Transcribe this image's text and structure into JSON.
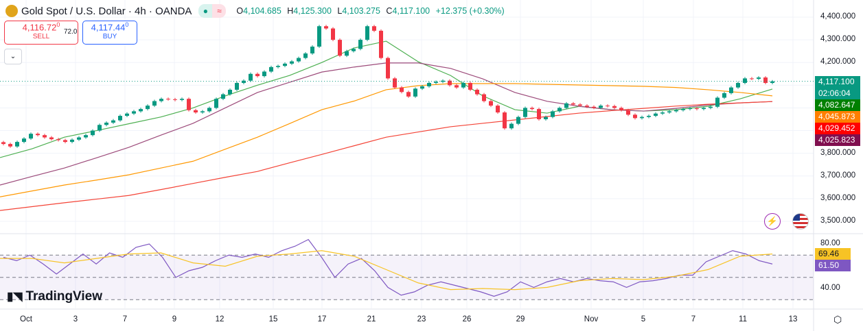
{
  "header": {
    "title": "Gold Spot / U.S. Dollar · 4h · OANDA",
    "open_label": "O",
    "open": "4,104.685",
    "high_label": "H",
    "high": "4,125.300",
    "low_label": "L",
    "low": "4,103.275",
    "close_label": "C",
    "close": "4,117.100",
    "change": "+12.375 (+0.30%)"
  },
  "trade": {
    "sell_price": "4,116.72",
    "sell_sup": "0",
    "sell_label": "SELL",
    "spread": "72.0",
    "buy_price": "4,117.44",
    "buy_sup": "0",
    "buy_label": "BUY"
  },
  "price_axis": {
    "labels": [
      "4,400.000",
      "4,300.000",
      "4,200.000",
      "3,800.000",
      "3,700.000",
      "3,600.000",
      "3,500.000"
    ],
    "label_values": [
      4400,
      4300,
      4200,
      3800,
      3700,
      3600,
      3500
    ],
    "range": [
      3500,
      4400
    ]
  },
  "tags": [
    {
      "text": "4,117.100",
      "sub": "02:06:04",
      "color": "#089981"
    },
    {
      "text": "4,082.647",
      "color": "#008000"
    },
    {
      "text": "4,045.873",
      "color": "#ff7f00"
    },
    {
      "text": "4,029.452",
      "color": "#ff0000"
    },
    {
      "text": "4,025.823",
      "color": "#800f4f"
    }
  ],
  "rsi": {
    "labels": [
      "80.00",
      "40.00"
    ],
    "value_tag": "61.50",
    "ma_tag": "69.46",
    "tag_color": "#7e57c2",
    "ma_color": "#f7c325",
    "levels": [
      70,
      50,
      30
    ],
    "range": [
      30,
      84
    ]
  },
  "x_axis": {
    "labels": [
      "Oct",
      "3",
      "7",
      "9",
      "12",
      "15",
      "17",
      "21",
      "23",
      "26",
      "29",
      "Nov",
      "5",
      "7",
      "11",
      "13"
    ]
  },
  "branding": "TradingView",
  "colors": {
    "up": "#089981",
    "down": "#f23645"
  },
  "chart_data": {
    "type": "candlestick",
    "closes": [
      3841,
      3830,
      3850,
      3865,
      3886,
      3880,
      3870,
      3862,
      3858,
      3850,
      3860,
      3870,
      3880,
      3900,
      3925,
      3935,
      3945,
      3965,
      3975,
      3985,
      3995,
      4010,
      4030,
      4040,
      4038,
      4035,
      4040,
      3990,
      3980,
      3985,
      4000,
      4040,
      4060,
      4080,
      4110,
      4120,
      4150,
      4140,
      4160,
      4180,
      4185,
      4195,
      4205,
      4220,
      4240,
      4270,
      4360,
      4350,
      4300,
      4230,
      4250,
      4260,
      4300,
      4360,
      4340,
      4220,
      4130,
      4090,
      4070,
      4050,
      4085,
      4095,
      4110,
      4115,
      4120,
      4100,
      4090,
      4110,
      4080,
      4060,
      4030,
      4010,
      3980,
      3910,
      3930,
      3960,
      4000,
      3995,
      3950,
      3960,
      3985,
      4000,
      4020,
      4015,
      4010,
      4005,
      4000,
      4010,
      4008,
      4000,
      3990,
      3970,
      3955,
      3960,
      3965,
      3975,
      3980,
      3985,
      3990,
      3995,
      3998,
      3995,
      4000,
      4005,
      4045,
      4065,
      4090,
      4110,
      4130,
      4128,
      4134,
      4110,
      4117
    ],
    "moving_averages": [
      {
        "color": "#4caf50",
        "values": [
          3781,
          3820,
          3871,
          3900,
          3930,
          3960,
          4000,
          4053,
          4100,
          4143,
          4200,
          4264,
          4294,
          4203,
          4143,
          4053,
          3992,
          3977,
          4007,
          3992,
          3986,
          3992,
          4007,
          4040,
          4083
        ]
      },
      {
        "color": "#9c4a7a",
        "values": [
          3660,
          3698,
          3735,
          3780,
          3826,
          3880,
          3932,
          4000,
          4068,
          4113,
          4158,
          4180,
          4198,
          4198,
          4174,
          4128,
          4068,
          4029,
          4007,
          3992,
          3986,
          3998,
          4013,
          4022,
          4028
        ]
      },
      {
        "color": "#ff9800",
        "values": [
          3608,
          3634,
          3660,
          3682,
          3705,
          3735,
          3765,
          3818,
          3871,
          3931,
          3992,
          4030,
          4080,
          4098,
          4107,
          4107,
          4107,
          4104,
          4101,
          4098,
          4095,
          4090,
          4080,
          4068,
          4053
        ]
      },
      {
        "color": "#f44336",
        "values": [
          3548,
          3565,
          3582,
          3598,
          3614,
          3640,
          3667,
          3694,
          3720,
          3758,
          3795,
          3833,
          3871,
          3894,
          3917,
          3932,
          3947,
          3962,
          3977,
          3988,
          3998,
          4008,
          4016,
          4022,
          4028
        ]
      }
    ],
    "rsi": [
      68,
      65,
      70,
      62,
      53,
      62,
      71,
      62,
      72,
      68,
      77,
      80,
      68,
      50,
      56,
      59,
      65,
      70,
      68,
      71,
      68,
      74,
      78,
      84,
      68,
      50,
      62,
      67,
      56,
      41,
      34,
      37,
      43,
      46,
      43,
      40,
      37,
      33,
      37,
      46,
      41,
      46,
      49,
      46,
      49,
      47,
      46,
      41,
      46,
      47,
      49,
      52,
      52,
      64,
      69,
      74,
      71,
      65,
      62
    ],
    "rsi_ma": [
      67,
      67,
      63,
      67,
      71,
      72,
      63,
      60,
      69,
      71,
      74,
      69,
      57,
      45,
      39,
      40,
      39,
      41,
      47,
      49,
      48,
      51,
      57,
      69,
      71
    ]
  }
}
